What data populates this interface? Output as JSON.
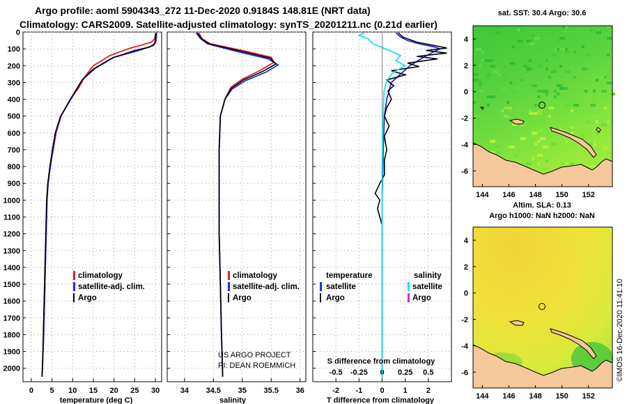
{
  "title": {
    "line1": "Argo profile: aoml 5904343_272 11-Dec-2020 0.9184S 148.81E (NRT data)",
    "line2": "Climatology: CARS2009. Satellite-adjusted climatology: synTS_20201211.nc (0.21d earlier)"
  },
  "colors": {
    "climatology": "#e02020",
    "satellite": "#2030e0",
    "argo": "#000000",
    "sal_satellite": "#20e0e8",
    "sal_argo": "#e020e0",
    "land": "#f4c89a"
  },
  "chart_data": [
    {
      "type": "line",
      "name": "temperature-profile",
      "xlabel": "temperature (deg C)",
      "xticks": [
        "0",
        "5",
        "10",
        "15",
        "20",
        "25",
        "30"
      ],
      "xlim": [
        -2,
        31.5
      ],
      "ylim": [
        0,
        2080
      ],
      "yticks": [
        "0",
        "100",
        "200",
        "300",
        "400",
        "500",
        "600",
        "700",
        "800",
        "900",
        "1000",
        "1100",
        "1200",
        "1300",
        "1400",
        "1500",
        "1600",
        "1700",
        "1800",
        "1900",
        "2000"
      ],
      "legend": [
        "climatology",
        "satellite-adj. clim.",
        "Argo"
      ],
      "series": [
        {
          "name": "climatology",
          "color": "#e02020",
          "points": [
            [
              30,
              10
            ],
            [
              29.8,
              40
            ],
            [
              29,
              60
            ],
            [
              27,
              75
            ],
            [
              24,
              95
            ],
            [
              19,
              140
            ],
            [
              15,
              200
            ],
            [
              12.8,
              270
            ],
            [
              11.5,
              330
            ],
            [
              9.5,
              400
            ],
            [
              7.2,
              500
            ],
            [
              6,
              600
            ],
            [
              5.3,
              700
            ],
            [
              4.6,
              800
            ],
            [
              4,
              900
            ],
            [
              3.8,
              1000
            ],
            [
              3.6,
              1200
            ],
            [
              3.4,
              1400
            ],
            [
              3.2,
              1600
            ],
            [
              3.0,
              1800
            ],
            [
              2.7,
              2000
            ],
            [
              2.6,
              2050
            ]
          ]
        },
        {
          "name": "satellite-adj. clim.",
          "color": "#2030e0",
          "points": [
            [
              30.3,
              5
            ],
            [
              30.2,
              40
            ],
            [
              30,
              65
            ],
            [
              29.5,
              80
            ],
            [
              26,
              110
            ],
            [
              20,
              150
            ],
            [
              15.5,
              215
            ],
            [
              12.5,
              280
            ],
            [
              11,
              340
            ],
            [
              9.3,
              410
            ],
            [
              7.1,
              500
            ],
            [
              5.9,
              600
            ],
            [
              5.2,
              700
            ],
            [
              4.6,
              800
            ],
            [
              4.1,
              900
            ],
            [
              3.8,
              1000
            ],
            [
              3.6,
              1200
            ],
            [
              3.4,
              1400
            ],
            [
              3.2,
              1600
            ],
            [
              3.0,
              1800
            ],
            [
              2.7,
              2000
            ],
            [
              2.6,
              2050
            ]
          ]
        },
        {
          "name": "Argo",
          "color": "#000000",
          "points": [
            [
              30.1,
              5
            ],
            [
              30,
              40
            ],
            [
              29.8,
              70
            ],
            [
              28.5,
              90
            ],
            [
              25,
              110
            ],
            [
              19.5,
              155
            ],
            [
              15,
              220
            ],
            [
              12.3,
              285
            ],
            [
              10.8,
              345
            ],
            [
              9.2,
              410
            ],
            [
              7,
              505
            ],
            [
              5.8,
              600
            ],
            [
              5.1,
              700
            ],
            [
              4.5,
              800
            ],
            [
              4,
              900
            ],
            [
              3.7,
              1000
            ],
            [
              3.5,
              1200
            ],
            [
              3.3,
              1400
            ],
            [
              3.1,
              1600
            ],
            [
              2.9,
              1800
            ],
            [
              2.7,
              2000
            ],
            [
              2.6,
              2050
            ]
          ]
        }
      ]
    },
    {
      "type": "line",
      "name": "salinity-profile",
      "xlabel": "salinity",
      "xticks": [
        "34",
        "34.5",
        "35",
        "35.5",
        "36"
      ],
      "xlim": [
        33.7,
        36.1
      ],
      "ylim": [
        0,
        2080
      ],
      "legend": [
        "climatology",
        "satellite-adj. clim.",
        "Argo"
      ],
      "series": [
        {
          "name": "climatology",
          "color": "#e02020",
          "points": [
            [
              34.25,
              5
            ],
            [
              34.3,
              40
            ],
            [
              34.45,
              70
            ],
            [
              35,
              110
            ],
            [
              35.5,
              150
            ],
            [
              35.55,
              180
            ],
            [
              35.3,
              230
            ],
            [
              35.0,
              280
            ],
            [
              34.8,
              330
            ],
            [
              34.7,
              400
            ],
            [
              34.62,
              500
            ],
            [
              34.6,
              700
            ],
            [
              34.6,
              900
            ],
            [
              34.6,
              1200
            ],
            [
              34.62,
              1500
            ],
            [
              34.64,
              1800
            ],
            [
              34.66,
              2050
            ]
          ]
        },
        {
          "name": "satellite-adj. clim.",
          "color": "#2030e0",
          "points": [
            [
              34.2,
              5
            ],
            [
              34.28,
              40
            ],
            [
              34.4,
              70
            ],
            [
              34.9,
              115
            ],
            [
              35.45,
              160
            ],
            [
              35.62,
              195
            ],
            [
              35.4,
              240
            ],
            [
              35.05,
              290
            ],
            [
              34.82,
              340
            ],
            [
              34.7,
              400
            ],
            [
              34.62,
              500
            ],
            [
              34.6,
              700
            ],
            [
              34.6,
              900
            ],
            [
              34.6,
              1200
            ],
            [
              34.62,
              1500
            ],
            [
              34.64,
              1800
            ],
            [
              34.66,
              2050
            ]
          ]
        },
        {
          "name": "Argo",
          "color": "#000000",
          "points": [
            [
              34.22,
              5
            ],
            [
              34.3,
              40
            ],
            [
              34.42,
              70
            ],
            [
              34.95,
              112
            ],
            [
              35.48,
              155
            ],
            [
              35.58,
              190
            ],
            [
              35.35,
              235
            ],
            [
              35.02,
              285
            ],
            [
              34.81,
              335
            ],
            [
              34.7,
              400
            ],
            [
              34.62,
              500
            ],
            [
              34.6,
              700
            ],
            [
              34.6,
              900
            ],
            [
              34.6,
              1200
            ],
            [
              34.62,
              1500
            ],
            [
              34.64,
              1800
            ],
            [
              34.66,
              2050
            ]
          ]
        }
      ]
    },
    {
      "type": "line",
      "name": "difference-from-climatology",
      "xlabel": "T difference from climatology",
      "xticks": [
        "-2",
        "-1",
        "0",
        "1",
        "2"
      ],
      "xlim": [
        -3,
        3
      ],
      "s_axis_label": "S difference from climatology",
      "s_xticks": [
        "-0.5",
        "-0.25",
        "0",
        "0.25",
        "0.5"
      ],
      "s_xlim": [
        -0.75,
        0.75
      ],
      "ylim": [
        0,
        2080
      ],
      "legend": {
        "temperature": [
          "satellite",
          "Argo"
        ],
        "salinity": [
          "satellite",
          "Argo"
        ]
      },
      "series": [
        {
          "name": "temperature satellite",
          "color": "#2030e0",
          "points": [
            [
              0.6,
              5
            ],
            [
              0.8,
              30
            ],
            [
              1.1,
              50
            ],
            [
              1.6,
              70
            ],
            [
              2.3,
              90
            ],
            [
              2.5,
              100
            ],
            [
              2.2,
              120
            ],
            [
              1.8,
              150
            ],
            [
              1.2,
              200
            ],
            [
              0.8,
              250
            ],
            [
              0.4,
              300
            ],
            [
              0.2,
              400
            ],
            [
              0.1,
              500
            ],
            [
              0.05,
              700
            ],
            [
              0,
              1000
            ],
            [
              0,
              1500
            ],
            [
              0,
              2050
            ]
          ]
        },
        {
          "name": "temperature Argo",
          "color": "#000000",
          "points": [
            [
              0.7,
              5
            ],
            [
              0.9,
              30
            ],
            [
              1.5,
              60
            ],
            [
              2.8,
              95
            ],
            [
              1.9,
              110
            ],
            [
              2.8,
              125
            ],
            [
              1.5,
              145
            ],
            [
              2.4,
              160
            ],
            [
              1.1,
              185
            ],
            [
              1.6,
              205
            ],
            [
              0.4,
              230
            ],
            [
              1.0,
              255
            ],
            [
              0.2,
              285
            ],
            [
              0.5,
              320
            ],
            [
              0.25,
              350
            ],
            [
              0.4,
              400
            ],
            [
              0.2,
              450
            ],
            [
              0.1,
              500
            ],
            [
              0.3,
              560
            ],
            [
              0.1,
              620
            ],
            [
              0.2,
              700
            ],
            [
              0.1,
              760
            ],
            [
              0.1,
              850
            ],
            [
              -0.1,
              900
            ],
            [
              -0.3,
              960
            ],
            [
              -0.1,
              1000
            ],
            [
              -0.2,
              1050
            ],
            [
              -0.1,
              1100
            ],
            [
              0,
              1150
            ],
            [
              0,
              1300
            ],
            [
              0,
              1500
            ],
            [
              0,
              2050
            ]
          ]
        },
        {
          "name": "salinity satellite",
          "color": "#20e0e8",
          "points": [
            [
              -0.2,
              5
            ],
            [
              -0.25,
              20
            ],
            [
              -0.15,
              40
            ],
            [
              -0.1,
              70
            ],
            [
              0.08,
              110
            ],
            [
              0.2,
              140
            ],
            [
              0.15,
              170
            ],
            [
              0.25,
              200
            ],
            [
              0.12,
              240
            ],
            [
              0.05,
              290
            ],
            [
              0.02,
              350
            ],
            [
              0.01,
              500
            ],
            [
              0,
              800
            ],
            [
              0,
              1200
            ],
            [
              0,
              1600
            ],
            [
              0,
              2050
            ]
          ]
        },
        {
          "name": "salinity Argo",
          "color": "#e020e0",
          "points": []
        }
      ]
    },
    {
      "type": "heatmap",
      "name": "sst-map",
      "title": "sat. SST: 30.4 Argo: 30.6",
      "xticks": [
        "144",
        "146",
        "148",
        "150",
        "152"
      ],
      "yticks": [
        "4",
        "2",
        "0",
        "-2",
        "-4",
        "-6"
      ],
      "xlim": [
        143.3,
        153.8
      ],
      "ylim": [
        -7.2,
        5
      ],
      "marker": [
        148.81,
        -0.92
      ]
    },
    {
      "type": "heatmap",
      "name": "sla-map",
      "title": "Altim. SLA: 0.13",
      "subtitle": "Argo h1000: NaN h2000: NaN",
      "xticks": [
        "144",
        "146",
        "148",
        "150",
        "152"
      ],
      "yticks": [
        "4",
        "2",
        "0",
        "-2",
        "-4",
        "-6"
      ],
      "xlim": [
        143.3,
        153.8
      ],
      "ylim": [
        -7.2,
        5
      ],
      "marker": [
        148.81,
        -0.92
      ]
    }
  ],
  "credits": {
    "project": "US ARGO PROJECT",
    "pi": "PI: DEAN ROEMMICH",
    "stamp": "©IMOS 16-Dec-2020 11:41:10"
  }
}
